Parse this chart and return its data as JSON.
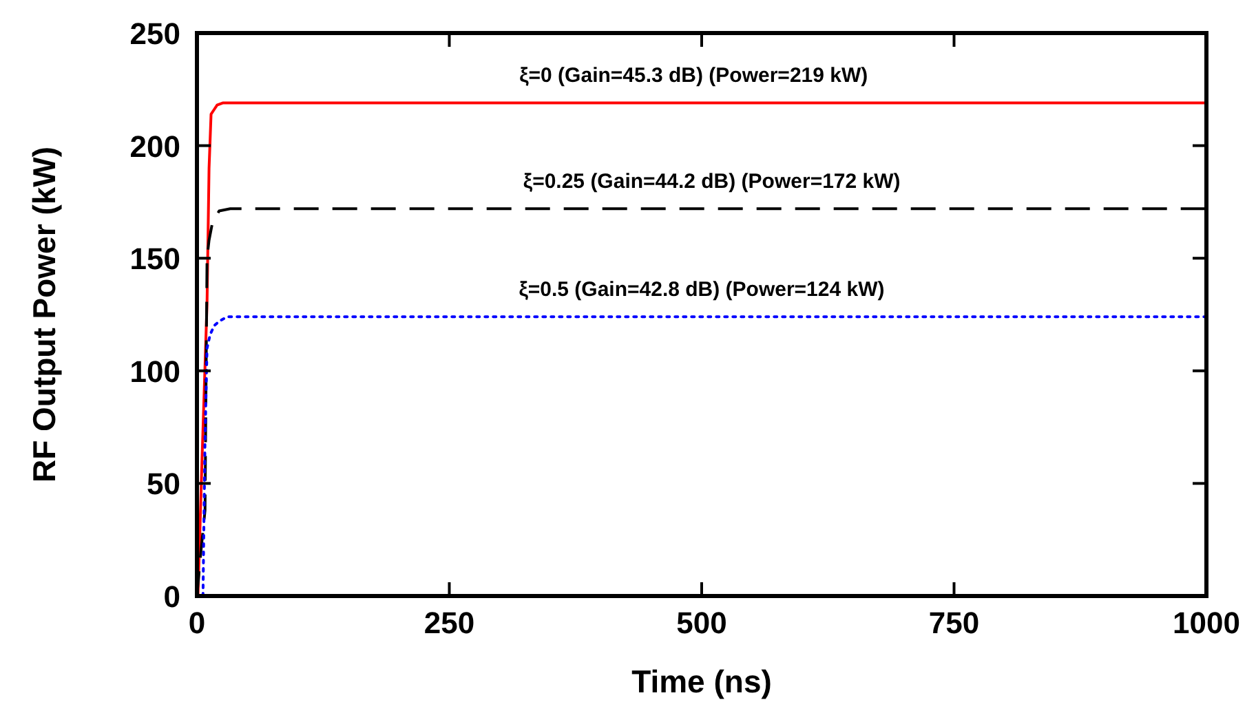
{
  "chart_data": {
    "type": "line",
    "xlabel": "Time (ns)",
    "ylabel": "RF Output Power (kW)",
    "xlim": [
      0,
      1000
    ],
    "ylim": [
      0,
      250
    ],
    "xticks": [
      0,
      250,
      500,
      750,
      1000
    ],
    "yticks": [
      0,
      50,
      100,
      150,
      200,
      250
    ],
    "grid": false,
    "marker": "none",
    "series": [
      {
        "color": "#ff0000",
        "line_style": "solid",
        "x": [
          1,
          5,
          10,
          12,
          14,
          17,
          20,
          26,
          32,
          1000
        ],
        "values": [
          0,
          60,
          130,
          190,
          214,
          216,
          218,
          219,
          219,
          219
        ]
      },
      {
        "color": "#000000",
        "line_style": "dashed",
        "x": [
          0,
          4,
          8,
          10,
          12,
          15,
          18,
          22,
          33,
          1000
        ],
        "values": [
          0,
          20,
          38,
          150,
          158,
          165,
          168,
          171,
          172,
          172
        ]
      },
      {
        "color": "#0000ff",
        "line_style": "dotted",
        "x": [
          6,
          7,
          8,
          10,
          13,
          17,
          22,
          30,
          1000
        ],
        "values": [
          0,
          35,
          69,
          110,
          116,
          120,
          122,
          124,
          124
        ]
      }
    ],
    "annotations": [
      {
        "text": "ξ=0 (Gain=45.3 dB) (Power=219 kW)",
        "x": 492,
        "y": 219
      },
      {
        "text": "ξ=0.25 (Gain=44.2 dB) (Power=172 kW)",
        "x": 510,
        "y": 172
      },
      {
        "text": "ξ=0.5 (Gain=42.8 dB) (Power=124 kW)",
        "x": 500,
        "y": 124
      }
    ]
  }
}
